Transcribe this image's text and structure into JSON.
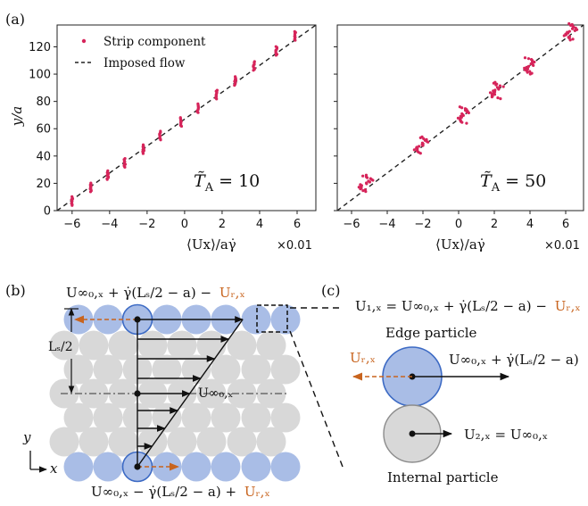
{
  "panel_a": {
    "label": "(a)",
    "ylabel": "y/a",
    "legend": {
      "strip": "Strip component",
      "imposed": "Imposed flow"
    },
    "chart_data": [
      {
        "type": "scatter",
        "annotation": "T̃A = 10",
        "annotation_main": "T̃",
        "annotation_sub": "A",
        "annotation_value": " = 10",
        "xlabel": "⟨Ux⟩/aγ̇",
        "x_multiplier": "×0.01",
        "x_ticks": [
          "−6",
          "−4",
          "−2",
          "0",
          "2",
          "4",
          "6"
        ],
        "y_ticks": [
          "0",
          "20",
          "40",
          "60",
          "80",
          "100",
          "120"
        ],
        "xlim": [
          -6.8,
          7.0
        ],
        "ylim": [
          0,
          136
        ],
        "line": {
          "name": "Imposed flow",
          "x": [
            -6.8,
            7.0
          ],
          "y": [
            0,
            136
          ]
        },
        "series": [
          {
            "name": "Strip component",
            "clusters": [
              {
                "x": -6.0,
                "y": 7
              },
              {
                "x": -5.0,
                "y": 17
              },
              {
                "x": -4.1,
                "y": 26
              },
              {
                "x": -3.2,
                "y": 35
              },
              {
                "x": -2.2,
                "y": 45
              },
              {
                "x": -1.3,
                "y": 55
              },
              {
                "x": -0.2,
                "y": 65
              },
              {
                "x": 0.7,
                "y": 75
              },
              {
                "x": 1.7,
                "y": 85
              },
              {
                "x": 2.7,
                "y": 95
              },
              {
                "x": 3.7,
                "y": 106
              },
              {
                "x": 4.9,
                "y": 117
              },
              {
                "x": 5.9,
                "y": 128
              }
            ]
          }
        ]
      },
      {
        "type": "scatter",
        "annotation": "T̃A = 50",
        "annotation_main": "T̃",
        "annotation_sub": "A",
        "annotation_value": " = 50",
        "xlabel": "⟨Ux⟩/aγ̇",
        "x_multiplier": "×0.01",
        "x_ticks": [
          "−6",
          "−4",
          "−2",
          "0",
          "2",
          "4",
          "6"
        ],
        "y_ticks": [
          "0",
          "20",
          "40",
          "60",
          "80",
          "100",
          "120"
        ],
        "xlim": [
          -6.8,
          7.0
        ],
        "ylim": [
          0,
          136
        ],
        "line": {
          "name": "Imposed flow",
          "x": [
            -6.8,
            7.0
          ],
          "y": [
            0,
            136
          ]
        },
        "series": [
          {
            "name": "Strip component",
            "clusters": [
              {
                "x": -5.2,
                "y": 20
              },
              {
                "x": -2.1,
                "y": 48
              },
              {
                "x": 0.2,
                "y": 70
              },
              {
                "x": 2.1,
                "y": 88
              },
              {
                "x": 4.0,
                "y": 106
              },
              {
                "x": 6.3,
                "y": 131
              }
            ]
          }
        ]
      }
    ]
  },
  "panel_b": {
    "label": "(b)",
    "top_formula": "U0,x∞ + γ̇(Ls/2 − a) − Ur,x",
    "top_main": "U∞₀,ₓ + γ̇(Lₛ/2 − a) −",
    "top_orange": "Uᵣ,ₓ",
    "bottom_main": "U∞₀,ₓ − γ̇(Lₛ/2 − a) +",
    "bottom_orange": "Uᵣ,ₓ",
    "ls_label": "Lₛ/2",
    "center_label": "U∞₀,ₓ",
    "axis_y": "y",
    "axis_x": "x"
  },
  "panel_c": {
    "label": "(c)",
    "u1_main": "U₁,ₓ = U∞₀,ₓ + γ̇(Lₛ/2 − a) −",
    "u1_orange": "Uᵣ,ₓ",
    "edge_label": "Edge particle",
    "ur_label": "Uᵣ,ₓ",
    "edge_vel": "U∞₀,ₓ + γ̇(Lₛ/2 − a)",
    "u2": "U₂,ₓ = U∞₀,ₓ",
    "internal_label": "Internal particle"
  },
  "colors": {
    "strip": "#d6245a",
    "edge_fill": "#a9bde6",
    "edge_stroke": "#3c6ac4",
    "internal_fill": "#d8d8d8",
    "orange": "#c8641e"
  }
}
